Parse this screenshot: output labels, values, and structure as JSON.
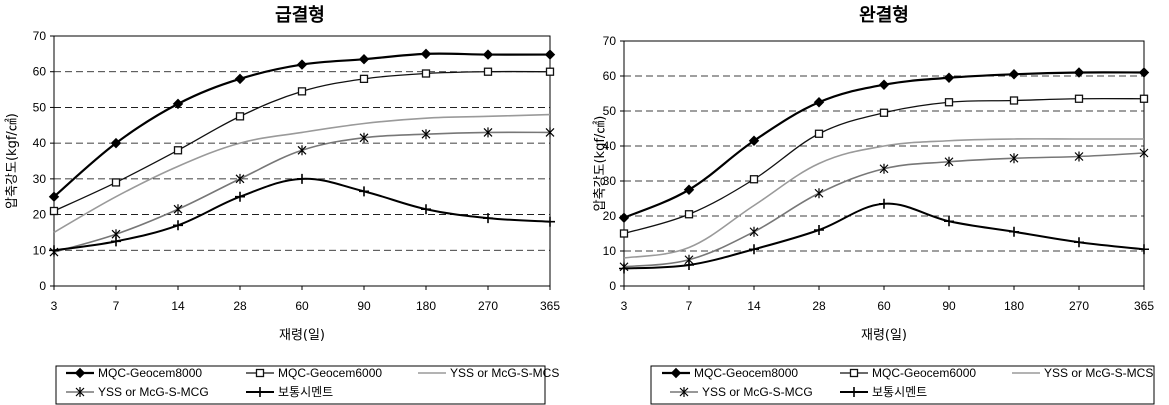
{
  "chart_data": [
    {
      "type": "line",
      "title": "급결형",
      "xlabel": "재령(일)",
      "ylabel": "압축강도(kgf/㎠)",
      "categories": [
        "3",
        "7",
        "14",
        "28",
        "60",
        "90",
        "180",
        "270",
        "365"
      ],
      "ylim": [
        0,
        70
      ],
      "yticks": [
        0,
        10,
        20,
        30,
        40,
        50,
        60,
        70
      ],
      "grid": "horizontal-dashed",
      "legend_position": "bottom",
      "series": [
        {
          "name": "MQC-Geocem8000",
          "marker": "diamond",
          "color": "#000000",
          "width": 2.2,
          "values": [
            25,
            40,
            51,
            58,
            62,
            63.5,
            65,
            64.8,
            64.8
          ]
        },
        {
          "name": "MQC-Geocem6000",
          "marker": "square",
          "color": "#111111",
          "width": 1.3,
          "values": [
            21,
            29,
            38,
            47.5,
            54.5,
            58,
            59.5,
            60,
            60
          ]
        },
        {
          "name": "YSS or McG-S-MCS",
          "marker": "none",
          "color": "#9a9a9a",
          "width": 1.6,
          "values": [
            15,
            25,
            33.5,
            40,
            43,
            45.5,
            47,
            47.5,
            48
          ]
        },
        {
          "name": "YSS or McG-S-MCG",
          "marker": "star",
          "color": "#777777",
          "width": 1.6,
          "values": [
            9.5,
            14.5,
            21.5,
            30,
            38,
            41.5,
            42.5,
            43,
            43
          ]
        },
        {
          "name": "보통시멘트",
          "marker": "plus",
          "color": "#000000",
          "width": 2.0,
          "values": [
            10,
            12.5,
            17,
            25,
            30,
            26.5,
            21.5,
            19,
            18
          ]
        }
      ]
    },
    {
      "type": "line",
      "title": "완결형",
      "xlabel": "재령(일)",
      "ylabel": "압축강도(kgf/㎠)",
      "categories": [
        "3",
        "7",
        "14",
        "28",
        "60",
        "90",
        "180",
        "270",
        "365"
      ],
      "ylim": [
        0,
        70
      ],
      "yticks": [
        0,
        10,
        20,
        30,
        40,
        50,
        60,
        70
      ],
      "grid": "horizontal-dashed",
      "legend_position": "bottom",
      "series": [
        {
          "name": "MQC-Geocem8000",
          "marker": "diamond",
          "color": "#000000",
          "width": 2.2,
          "values": [
            19.5,
            27.5,
            41.5,
            52.5,
            57.5,
            59.5,
            60.5,
            61,
            61
          ]
        },
        {
          "name": "MQC-Geocem6000",
          "marker": "square",
          "color": "#111111",
          "width": 1.3,
          "values": [
            15,
            20.5,
            30.5,
            43.5,
            49.5,
            52.5,
            53,
            53.5,
            53.5
          ]
        },
        {
          "name": "YSS or McG-S-MCS",
          "marker": "none",
          "color": "#9a9a9a",
          "width": 1.6,
          "values": [
            8,
            11,
            23,
            35,
            40,
            41.5,
            42,
            42,
            42
          ]
        },
        {
          "name": "YSS or McG-S-MCG",
          "marker": "star",
          "color": "#777777",
          "width": 1.6,
          "values": [
            5.5,
            7.5,
            15.5,
            26.5,
            33.5,
            35.5,
            36.5,
            37,
            38
          ]
        },
        {
          "name": "보통시멘트",
          "marker": "plus",
          "color": "#000000",
          "width": 2.0,
          "values": [
            5,
            6,
            10.5,
            16,
            23.5,
            18.5,
            15.5,
            12.5,
            10.5
          ]
        }
      ]
    }
  ]
}
